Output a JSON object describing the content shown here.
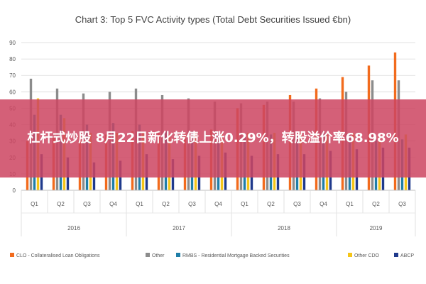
{
  "chart_data": {
    "type": "bar",
    "title": "Chart 3: Top 5 FVC Activity types (Total Debt Securities Issued €bn)",
    "xlabel": "",
    "ylabel": "",
    "ylim": [
      0,
      90
    ],
    "yticks": [
      0,
      10,
      20,
      30,
      40,
      50,
      60,
      70,
      80,
      90
    ],
    "grid": true,
    "legend_position": "bottom",
    "categories": [
      "Q1",
      "Q2",
      "Q3",
      "Q4",
      "Q1",
      "Q2",
      "Q3",
      "Q4",
      "Q1",
      "Q2",
      "Q3",
      "Q4",
      "Q1",
      "Q2",
      "Q3"
    ],
    "groups": [
      {
        "label": "2016",
        "count": 4
      },
      {
        "label": "2017",
        "count": 4
      },
      {
        "label": "2018",
        "count": 4
      },
      {
        "label": "2019",
        "count": 3
      }
    ],
    "series": [
      {
        "name": "CLO - Collateralised Loan Obligations",
        "color": "#f26b1d",
        "values": [
          30,
          32,
          34,
          34,
          36,
          35,
          35,
          37,
          50,
          52,
          58,
          62,
          69,
          76,
          84
        ]
      },
      {
        "name": "Other",
        "color": "#8c8c8c",
        "values": [
          68,
          62,
          59,
          60,
          62,
          58,
          56,
          54,
          53,
          54,
          54,
          56,
          60,
          67,
          67
        ]
      },
      {
        "name": "RMBS - Residential Mortgage Backed Securities",
        "color": "#1f7ea8",
        "values": [
          46,
          46,
          40,
          41,
          40,
          36,
          36,
          35,
          34,
          34,
          33,
          36,
          34,
          31,
          31
        ]
      },
      {
        "name": "Other CDO",
        "color": "#f5c518",
        "values": [
          56,
          44,
          35,
          35,
          35,
          34,
          35,
          35,
          35,
          35,
          35,
          34,
          35,
          34,
          34
        ]
      },
      {
        "name": "ABCP",
        "color": "#1f3a8c",
        "values": [
          22,
          20,
          17,
          18,
          22,
          19,
          21,
          23,
          21,
          22,
          22,
          24,
          25,
          26,
          26
        ]
      }
    ]
  },
  "banner": {
    "text": "杠杆式炒股 8月22日新化转债上涨0.29%，转股溢价率68.98%"
  }
}
